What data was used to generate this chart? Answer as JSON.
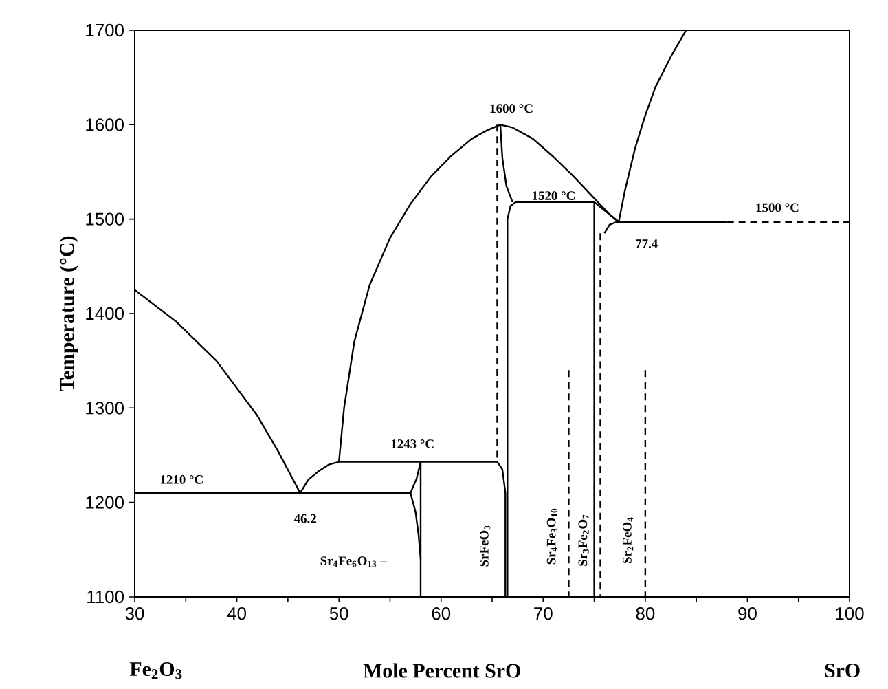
{
  "chart_data": {
    "type": "line",
    "xlabel": "Mole Percent SrO",
    "ylabel": "Temperature (°C)",
    "xlim": [
      30,
      100
    ],
    "ylim": [
      1100,
      1700
    ],
    "xticks": [
      30,
      {
        "value": 35,
        "label": null
      },
      40,
      {
        "value": 45,
        "label": null
      },
      50,
      {
        "value": 55,
        "label": null
      },
      60,
      {
        "value": 65,
        "label": null
      },
      70,
      {
        "value": 75,
        "label": null
      },
      80,
      {
        "value": 85,
        "label": null
      },
      90,
      {
        "value": 95,
        "label": null
      },
      100
    ],
    "yticks": [
      1100,
      1200,
      1300,
      1400,
      1500,
      1600,
      1700
    ],
    "marker": "none",
    "series": [
      {
        "color": "#000000",
        "line_style": "solid",
        "x": [
          30,
          34,
          38,
          42,
          44,
          46.2,
          47,
          48,
          49,
          50,
          65.5,
          66,
          66.3,
          66.3
        ],
        "values": [
          1425,
          1392,
          1350,
          1292,
          1255,
          1210,
          1224,
          1233,
          1240,
          1243,
          1243,
          1235,
          1210,
          1100
        ]
      },
      {
        "color": "#000000",
        "line_style": "solid",
        "x": [
          50,
          50.5,
          51.5,
          53,
          55,
          57,
          59,
          61,
          63,
          64.5,
          65.8,
          67,
          69,
          71,
          73,
          75,
          76.5,
          77.4,
          78,
          79,
          80,
          81,
          82.5,
          84
        ],
        "values": [
          1243,
          1300,
          1370,
          1430,
          1480,
          1516,
          1545,
          1567,
          1585,
          1594,
          1600,
          1597,
          1585,
          1566,
          1545,
          1522,
          1505,
          1497,
          1530,
          1575,
          1610,
          1640,
          1672,
          1700
        ]
      },
      {
        "color": "#000000",
        "line_style": "solid",
        "x": [
          30,
          57,
          57.6,
          58,
          58
        ],
        "values": [
          1210,
          1210,
          1225,
          1243,
          1100
        ]
      },
      {
        "color": "#000000",
        "line_style": "solid",
        "x": [
          57,
          57.5,
          57.8,
          58
        ],
        "values": [
          1210,
          1190,
          1165,
          1140
        ]
      },
      {
        "color": "#000000",
        "line_style": "solid",
        "x": [
          65.8,
          66,
          66.4,
          67
        ],
        "values": [
          1600,
          1565,
          1535,
          1518
        ]
      },
      {
        "color": "#000000",
        "line_style": "solid",
        "x": [
          66.5,
          66.5,
          66.8,
          67.3,
          75,
          75
        ],
        "values": [
          1100,
          1500,
          1514,
          1518,
          1518,
          1100
        ]
      },
      {
        "color": "#000000",
        "line_style": "solid",
        "x": [
          75,
          77.4
        ],
        "values": [
          1518,
          1497
        ]
      },
      {
        "color": "#000000",
        "line_style": "solid",
        "x": [
          76,
          76.5,
          77.2,
          88
        ],
        "values": [
          1485,
          1494,
          1497,
          1497
        ]
      },
      {
        "color": "#000000",
        "line_style": "dashed",
        "x": [
          88,
          100
        ],
        "values": [
          1497,
          1497
        ]
      },
      {
        "color": "#000000",
        "line_style": "dashed",
        "x": [
          65.5,
          65.5
        ],
        "values": [
          1600,
          1243
        ]
      },
      {
        "color": "#000000",
        "line_style": "dashed",
        "x": [
          72.5,
          72.5
        ],
        "values": [
          1340,
          1100
        ]
      },
      {
        "color": "#000000",
        "line_style": "dashed",
        "x": [
          75.6,
          75.6
        ],
        "values": [
          1485,
          1100
        ]
      },
      {
        "color": "#000000",
        "line_style": "dashed",
        "x": [
          80,
          80
        ],
        "values": [
          1340,
          1100
        ]
      }
    ],
    "annotations": [
      "1210 °C",
      "46.2",
      "1243 °C",
      "1600 °C",
      "1520 °C",
      "1500 °C",
      "77.4",
      "Sr$_{4}$Fe$_{6}$O$_{13}$ –",
      "SrFeO$_{3}$",
      "Sr$_{4}$Fe$_{3}$O$_{10}$",
      "Sr$_{3}$Fe$_{2}$O$_{7}$",
      "Sr$_{2}$FeO$_{4}$",
      "Fe$_{2}$O$_{3}$",
      "SrO"
    ]
  }
}
